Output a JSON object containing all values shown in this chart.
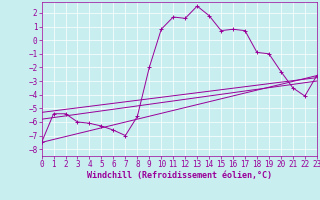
{
  "xlabel": "Windchill (Refroidissement éolien,°C)",
  "bg_color": "#c8eef0",
  "line_color": "#990099",
  "grid_color": "#ffffff",
  "xlim": [
    0,
    23
  ],
  "ylim": [
    -8.5,
    2.8
  ],
  "yticks": [
    2,
    1,
    0,
    -1,
    -2,
    -3,
    -4,
    -5,
    -6,
    -7,
    -8
  ],
  "xticks": [
    0,
    1,
    2,
    3,
    4,
    5,
    6,
    7,
    8,
    9,
    10,
    11,
    12,
    13,
    14,
    15,
    16,
    17,
    18,
    19,
    20,
    21,
    22,
    23
  ],
  "line1_x": [
    0,
    1,
    2,
    3,
    4,
    5,
    6,
    7,
    8,
    9,
    10,
    11,
    12,
    13,
    14,
    15,
    16,
    17,
    18,
    19,
    20,
    21,
    22,
    23
  ],
  "line1_y": [
    -7.5,
    -5.4,
    -5.4,
    -6.0,
    -6.1,
    -6.3,
    -6.6,
    -7.0,
    -5.6,
    -2.0,
    0.8,
    1.7,
    1.6,
    2.5,
    1.8,
    0.7,
    0.8,
    0.7,
    -0.9,
    -1.0,
    -2.3,
    -3.5,
    -4.1,
    -2.6
  ],
  "line2_x": [
    0,
    23
  ],
  "line2_y": [
    -7.5,
    -2.6
  ],
  "line3_x": [
    0,
    23
  ],
  "line3_y": [
    -5.8,
    -3.0
  ],
  "line4_x": [
    0,
    23
  ],
  "line4_y": [
    -5.3,
    -2.75
  ],
  "xlabel_fontsize": 6.0,
  "tick_fontsize": 5.5
}
